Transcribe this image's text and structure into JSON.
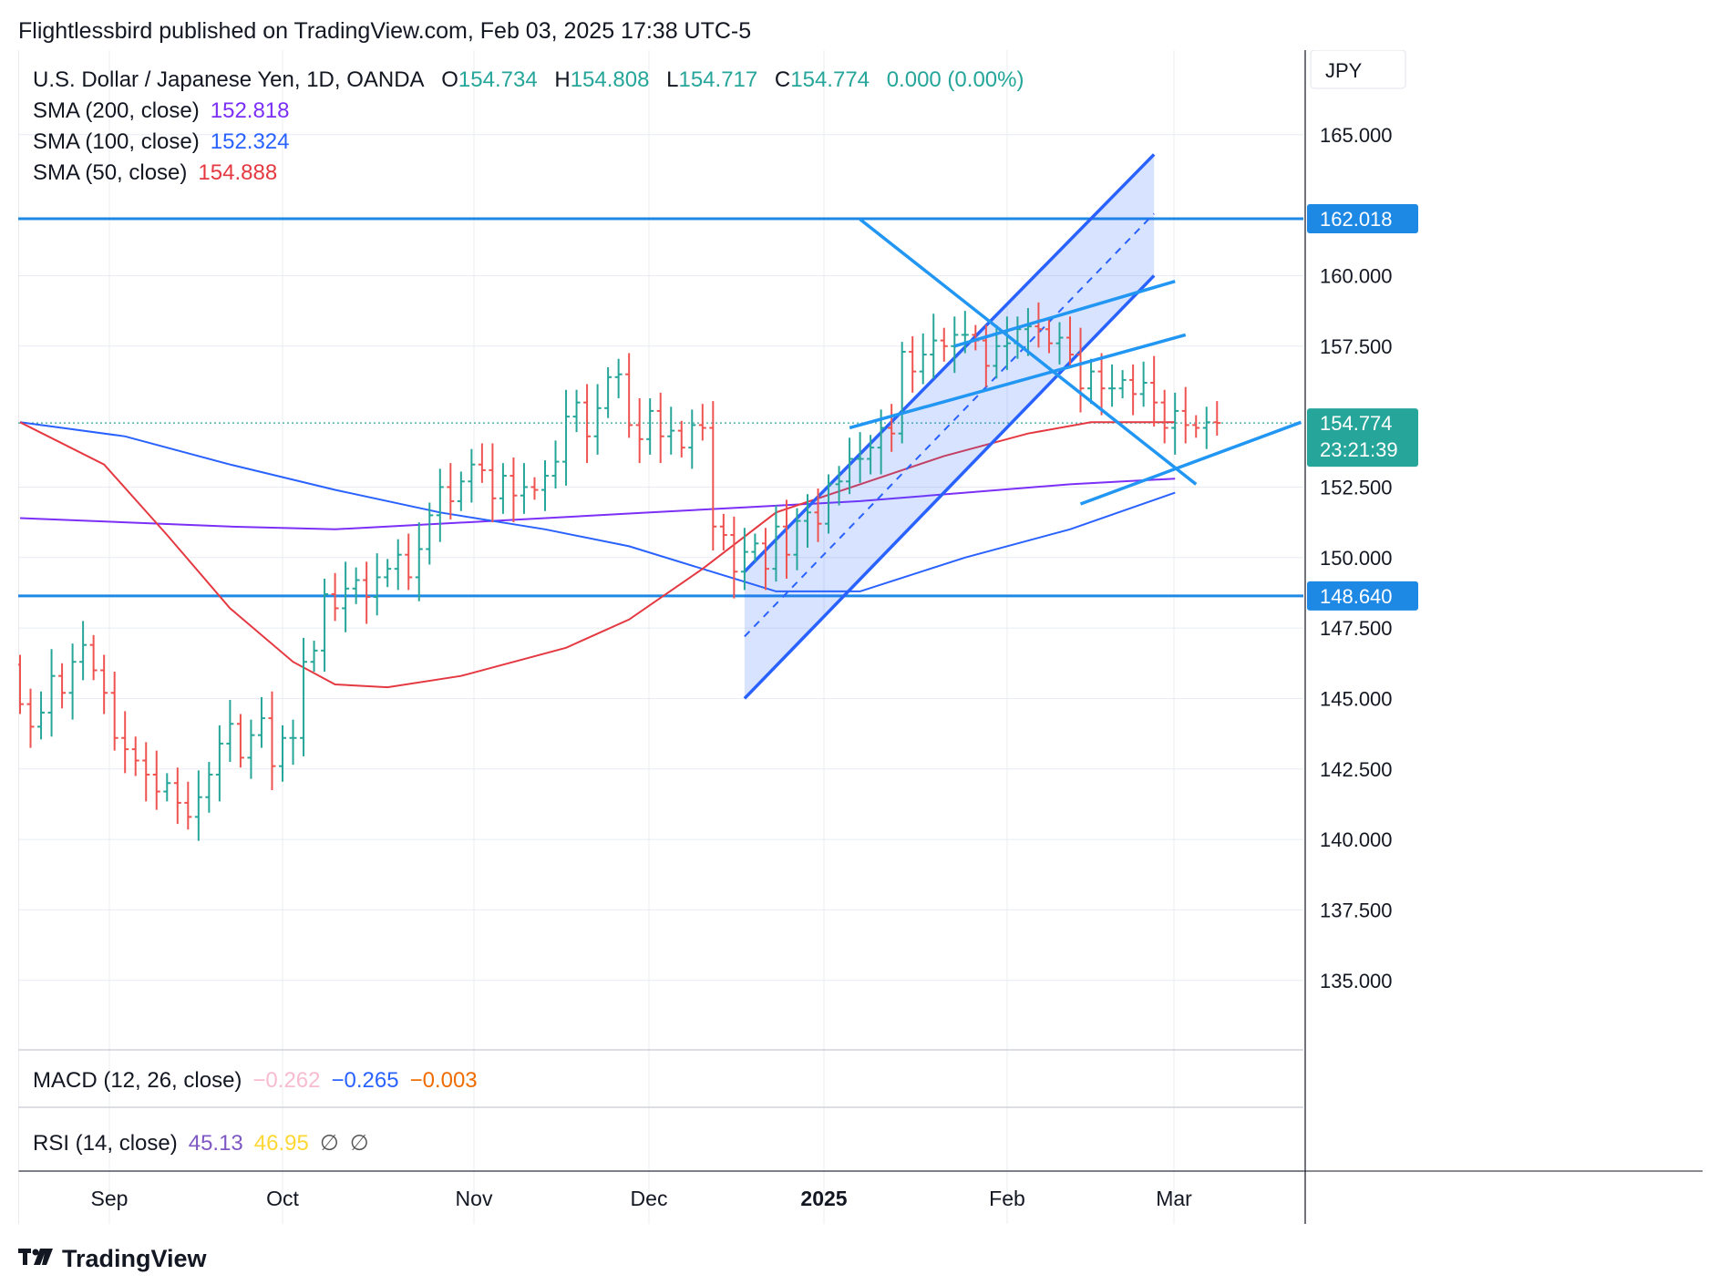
{
  "publisher_line": "Flightlessbird published on TradingView.com, Feb 03, 2025 17:38 UTC-5",
  "brand": "TradingView",
  "currency_label": "JPY",
  "colors": {
    "up": "#26a69a",
    "down": "#ef5350",
    "sma200": "#7b2ff7",
    "sma100": "#2962ff",
    "sma50": "#e53942",
    "level_line": "#1e88e5",
    "channel": "#2962ff",
    "trendline": "#2196f3",
    "price_badge": "#26a69a"
  },
  "legend": {
    "symbol": "U.S. Dollar / Japanese Yen, 1D, OANDA",
    "open_label": "O",
    "open": "154.734",
    "high_label": "H",
    "high": "154.808",
    "low_label": "L",
    "low": "154.717",
    "close_label": "C",
    "close": "154.774",
    "change": "0.000 (0.00%)",
    "sma200_label": "SMA (200, close)",
    "sma200_value": "152.818",
    "sma100_label": "SMA (100, close)",
    "sma100_value": "152.324",
    "sma50_label": "SMA (50, close)",
    "sma50_value": "154.888"
  },
  "macd": {
    "label": "MACD (12, 26, close)",
    "v1": "−0.262",
    "v2": "−0.265",
    "v3": "−0.003"
  },
  "rsi": {
    "label": "RSI (14, close)",
    "v1": "45.13",
    "v2": "46.95",
    "v3": "∅",
    "v4": "∅"
  },
  "price_badge": {
    "price": "154.774",
    "countdown": "23:21:39"
  },
  "chart_data": {
    "type": "ohlc",
    "title": "U.S. Dollar / Japanese Yen, 1D, OANDA",
    "x_axis": {
      "labels": [
        "Sep",
        "Oct",
        "Nov",
        "Dec",
        "2025",
        "Feb",
        "Mar"
      ],
      "bold": [
        "2025"
      ]
    },
    "y_axis": {
      "ticks": [
        "135.000",
        "137.500",
        "140.000",
        "142.500",
        "145.000",
        "147.500",
        "150.000",
        "152.500",
        "157.500",
        "160.000",
        "165.000"
      ],
      "ylim": [
        132.6,
        168.0
      ]
    },
    "horizontal_levels": [
      {
        "price": 162.018,
        "label": "162.018"
      },
      {
        "price": 148.64,
        "label": "148.640"
      }
    ],
    "last_price": 154.774,
    "ohlc_series": {
      "note": "daily bars, Aug 23 2024 - Feb 3 2025 (approximate)",
      "open": [
        146.2,
        144.8,
        144.0,
        144.5,
        145.8,
        145.2,
        146.3,
        146.9,
        146.0,
        145.2,
        143.6,
        143.2,
        142.8,
        142.3,
        141.7,
        142.0,
        141.3,
        140.8,
        141.5,
        142.3,
        143.4,
        144.1,
        142.9,
        143.7,
        144.3,
        142.6,
        143.6,
        143.6,
        146.3,
        146.7,
        148.7,
        148.2,
        148.9,
        149.2,
        148.6,
        149.3,
        149.6,
        150.1,
        149.3,
        150.3,
        151.5,
        152.5,
        152.0,
        152.7,
        153.3,
        153.1,
        152.1,
        152.9,
        152.2,
        152.5,
        152.4,
        152.9,
        153.4,
        155.0,
        155.5,
        154.3,
        155.3,
        156.4,
        156.5,
        154.7,
        154.2,
        155.2,
        154.3,
        154.5,
        153.9,
        154.7,
        154.6,
        151.1,
        150.8,
        149.5,
        150.2,
        150.5,
        149.6,
        151.1,
        150.1,
        151.3,
        151.6,
        151.2,
        152.6,
        152.7,
        153.5,
        153.5,
        153.9,
        154.6,
        154.4,
        157.3,
        156.6,
        157.2,
        157.7,
        157.5,
        157.9,
        157.9,
        157.7,
        156.8,
        157.5,
        157.6,
        158.1,
        158.2,
        158.1,
        157.6,
        157.8,
        157.2,
        156.0,
        156.6,
        156.0,
        156.0,
        156.3,
        155.8,
        156.2,
        155.5,
        154.6,
        155.2,
        154.7,
        154.6,
        154.8
      ],
      "close": [
        144.8,
        144.0,
        144.5,
        145.8,
        145.2,
        146.3,
        146.9,
        146.0,
        145.2,
        143.6,
        143.2,
        142.8,
        142.3,
        141.7,
        142.0,
        141.3,
        140.8,
        141.5,
        142.3,
        143.4,
        144.1,
        142.9,
        143.7,
        144.3,
        142.6,
        143.6,
        143.6,
        146.3,
        146.7,
        148.7,
        148.2,
        148.9,
        149.2,
        148.6,
        149.3,
        149.6,
        150.1,
        149.3,
        150.3,
        151.5,
        152.5,
        152.0,
        152.7,
        153.3,
        153.1,
        152.1,
        152.9,
        152.2,
        152.5,
        152.4,
        152.9,
        153.4,
        155.0,
        155.5,
        154.3,
        155.3,
        156.4,
        156.5,
        154.7,
        154.2,
        155.2,
        154.3,
        154.5,
        153.9,
        154.7,
        154.6,
        151.1,
        150.8,
        149.5,
        150.2,
        150.5,
        149.6,
        151.1,
        150.1,
        151.3,
        151.6,
        151.2,
        152.6,
        152.7,
        153.5,
        153.5,
        153.9,
        154.6,
        154.4,
        157.3,
        156.6,
        157.2,
        157.7,
        157.5,
        157.9,
        157.9,
        157.7,
        156.8,
        157.5,
        157.6,
        158.1,
        158.2,
        158.1,
        157.6,
        157.8,
        157.2,
        156.0,
        156.6,
        156.0,
        156.0,
        156.3,
        155.8,
        156.2,
        155.5,
        154.6,
        155.2,
        154.7,
        154.6,
        154.8,
        154.774
      ]
    },
    "overlays": [
      {
        "name": "SMA (200, close)",
        "color": "#7b2ff7",
        "points": [
          [
            0,
            151.4
          ],
          [
            20,
            151.1
          ],
          [
            30,
            151.0
          ],
          [
            45,
            151.3
          ],
          [
            60,
            151.6
          ],
          [
            70,
            151.8
          ],
          [
            80,
            152.0
          ],
          [
            90,
            152.3
          ],
          [
            100,
            152.6
          ],
          [
            110,
            152.8
          ]
        ]
      },
      {
        "name": "SMA (100, close)",
        "color": "#2962ff",
        "points": [
          [
            0,
            154.8
          ],
          [
            10,
            154.3
          ],
          [
            20,
            153.3
          ],
          [
            30,
            152.4
          ],
          [
            40,
            151.6
          ],
          [
            50,
            151.0
          ],
          [
            58,
            150.4
          ],
          [
            65,
            149.6
          ],
          [
            72,
            148.8
          ],
          [
            80,
            148.8
          ],
          [
            90,
            150.0
          ],
          [
            100,
            151.0
          ],
          [
            110,
            152.3
          ]
        ]
      },
      {
        "name": "SMA (50, close)",
        "color": "#e53942",
        "points": [
          [
            0,
            154.8
          ],
          [
            8,
            153.3
          ],
          [
            14,
            150.8
          ],
          [
            20,
            148.2
          ],
          [
            26,
            146.3
          ],
          [
            30,
            145.5
          ],
          [
            35,
            145.4
          ],
          [
            42,
            145.8
          ],
          [
            52,
            146.8
          ],
          [
            58,
            147.8
          ],
          [
            65,
            149.6
          ],
          [
            72,
            151.6
          ],
          [
            80,
            152.6
          ],
          [
            88,
            153.6
          ],
          [
            96,
            154.4
          ],
          [
            102,
            154.8
          ],
          [
            110,
            154.8
          ]
        ]
      }
    ]
  }
}
